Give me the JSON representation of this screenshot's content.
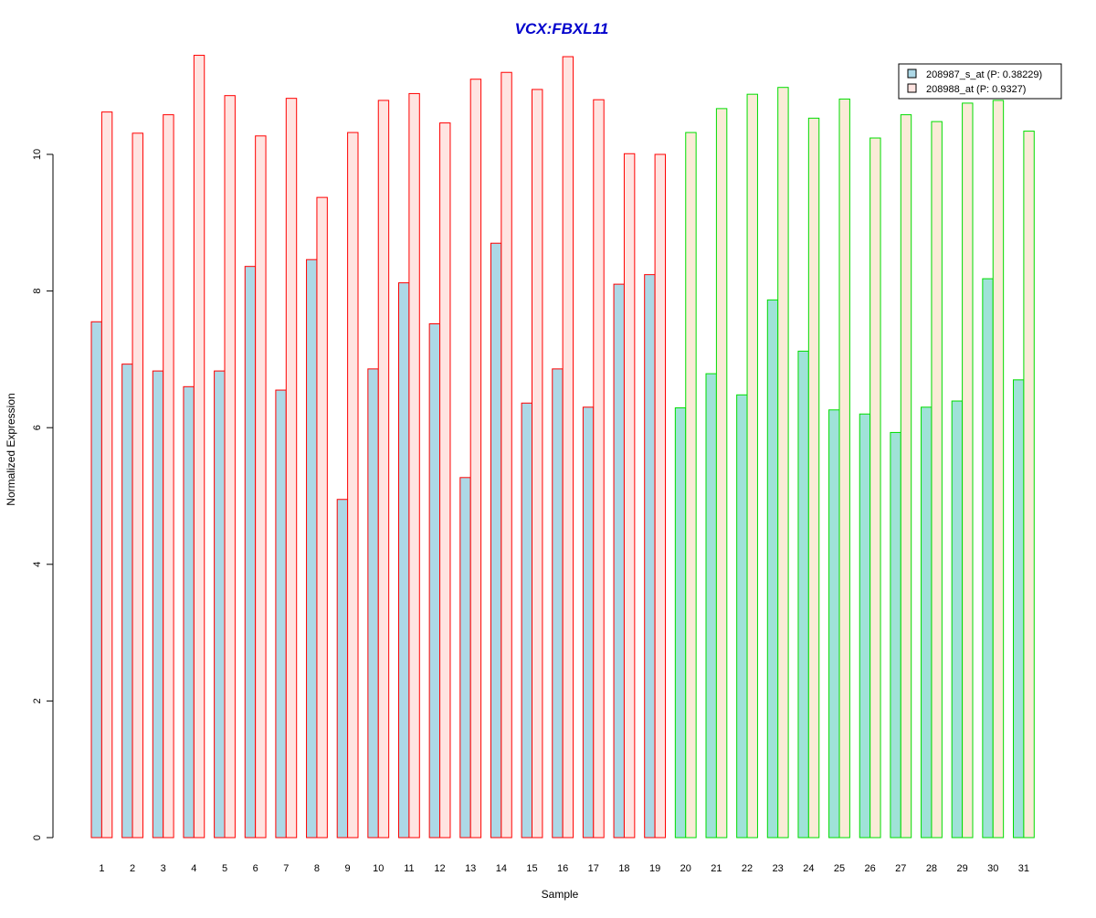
{
  "colors": {
    "title": "#0000CC",
    "group1_border": "#FF0000",
    "group2_border": "#00DD00",
    "series1_fill": "#ADD8E6",
    "series2_fill_group1": "#FFE4E1",
    "series2_fill_group2": "#FAEBD7",
    "series1_fill_group2": "#9FE2D8",
    "axis": "#000000"
  },
  "chart_data": {
    "type": "bar",
    "title": "VCX:FBXL11",
    "xlabel": "Sample",
    "ylabel": "Normalized Expression",
    "ylim": [
      0,
      11.5
    ],
    "yticks": [
      "0",
      "2",
      "4",
      "6",
      "8",
      "10"
    ],
    "categories": [
      "1",
      "2",
      "3",
      "4",
      "5",
      "6",
      "7",
      "8",
      "9",
      "10",
      "11",
      "12",
      "13",
      "14",
      "15",
      "16",
      "17",
      "18",
      "19",
      "20",
      "21",
      "22",
      "23",
      "24",
      "25",
      "26",
      "27",
      "28",
      "29",
      "30",
      "31"
    ],
    "groups": [
      {
        "samples": "1-19",
        "border": "red"
      },
      {
        "samples": "20-31",
        "border": "green"
      }
    ],
    "series": [
      {
        "name": "208987_s_at (P: 0.38229)",
        "values": [
          7.55,
          6.93,
          6.83,
          6.6,
          6.83,
          8.36,
          6.55,
          8.46,
          4.95,
          6.86,
          8.12,
          7.52,
          5.27,
          8.7,
          6.36,
          6.86,
          6.3,
          8.1,
          8.24,
          6.29,
          6.79,
          6.48,
          7.87,
          7.12,
          6.26,
          6.2,
          5.93,
          6.3,
          6.39,
          8.18,
          6.7
        ]
      },
      {
        "name": "208988_at (P: 0.9327)",
        "values": [
          10.62,
          10.31,
          10.58,
          11.45,
          10.86,
          10.27,
          10.82,
          9.37,
          10.32,
          10.79,
          10.89,
          10.46,
          11.1,
          11.2,
          10.95,
          11.43,
          10.8,
          10.01,
          10.0,
          10.32,
          10.67,
          10.88,
          10.98,
          10.53,
          10.81,
          10.24,
          10.58,
          10.48,
          10.75,
          10.79,
          10.34
        ]
      }
    ],
    "legend": {
      "position": "top-right",
      "entries": [
        "208987_s_at (P: 0.38229)",
        "208988_at (P: 0.9327)"
      ]
    },
    "grid": false
  }
}
